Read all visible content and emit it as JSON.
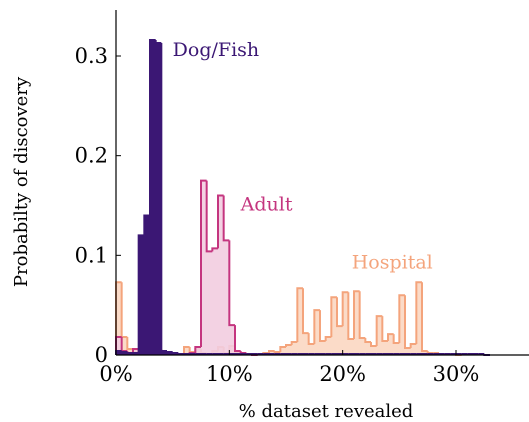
{
  "chart_data": {
    "type": "area",
    "xlabel": "% dataset revealed",
    "ylabel": "Probabilty of discovery",
    "xlim": [
      0,
      36
    ],
    "ylim": [
      0,
      0.35
    ],
    "x_ticks": [
      0,
      10,
      20,
      30
    ],
    "x_tick_labels": [
      "0%",
      "10%",
      "20%",
      "30%"
    ],
    "y_ticks": [
      0,
      0.1,
      0.2,
      0.3
    ],
    "y_tick_labels": [
      "0",
      "0.1",
      "0.2",
      "0.3"
    ],
    "grid": false,
    "bin_width": 0.5,
    "series": [
      {
        "name": "Hospital",
        "label": "Hospital",
        "color": "#f4a47c",
        "fill": "#fbd7c2",
        "fill_opacity": 0.9,
        "label_position": [
          20.8,
          0.087
        ],
        "x": [
          0,
          0.5,
          1,
          1.5,
          2,
          2.5,
          3,
          3.5,
          4,
          4.5,
          5,
          5.5,
          6,
          6.5,
          7,
          7.5,
          8,
          8.5,
          9,
          9.5,
          10,
          10.5,
          11,
          11.5,
          12,
          12.5,
          13,
          13.5,
          14,
          14.5,
          15,
          15.5,
          16,
          16.5,
          17,
          17.5,
          18,
          18.5,
          19,
          19.5,
          20,
          20.5,
          21,
          21.5,
          22,
          22.5,
          23,
          23.5,
          24,
          24.5,
          25,
          25.5,
          26,
          26.5,
          27,
          27.5,
          28,
          28.5,
          29,
          29.5,
          30
        ],
        "values": [
          0.073,
          0.018,
          0.006,
          0.004,
          0.002,
          0.002,
          0.008,
          0.006,
          0.004,
          0.002,
          0.001,
          0.001,
          0.008,
          0.003,
          0.006,
          0.002,
          0.001,
          0.004,
          0.008,
          0.002,
          0.009,
          0.003,
          0.002,
          0.001,
          0.001,
          0.001,
          0.002,
          0.004,
          0.003,
          0.008,
          0.01,
          0.013,
          0.067,
          0.022,
          0.011,
          0.045,
          0.014,
          0.018,
          0.058,
          0.029,
          0.063,
          0.016,
          0.064,
          0.017,
          0.013,
          0.009,
          0.039,
          0.014,
          0.021,
          0.012,
          0.06,
          0.007,
          0.011,
          0.073,
          0.004,
          0.002,
          0.002,
          0.001,
          0.001,
          0.001,
          0.0
        ]
      },
      {
        "name": "Adult",
        "label": "Adult",
        "color": "#c4357f",
        "fill": "#f2cde0",
        "fill_opacity": 0.9,
        "label_position": [
          11.0,
          0.145
        ],
        "x": [
          0,
          0.5,
          1,
          1.5,
          2,
          2.5,
          3,
          3.5,
          4,
          4.5,
          5,
          5.5,
          6,
          6.5,
          7,
          7.5,
          8,
          8.5,
          9,
          9.5,
          10,
          10.5,
          11,
          11.5,
          12
        ],
        "values": [
          0.018,
          0.004,
          0.002,
          0.006,
          0.004,
          0.003,
          0.002,
          0.001,
          0.001,
          0.001,
          0.001,
          0.001,
          0.001,
          0.002,
          0.008,
          0.175,
          0.104,
          0.107,
          0.16,
          0.115,
          0.03,
          0.004,
          0.002,
          0.001,
          0.0
        ]
      },
      {
        "name": "Dog/Fish",
        "label": "Dog/Fish",
        "color": "#3b1774",
        "fill": "#3b1774",
        "fill_opacity": 1,
        "label_position": [
          5.0,
          0.3
        ],
        "x": [
          0,
          0.5,
          1,
          1.5,
          2,
          2.5,
          3,
          3.5,
          4,
          4.5,
          5,
          5.5,
          6,
          6.5,
          7,
          7.5,
          8,
          8.5,
          9,
          9.5,
          10,
          10.5,
          11,
          11.5,
          12,
          12.5,
          13,
          13.5,
          14,
          14.5,
          15,
          15.5,
          16,
          16.5,
          17,
          17.5,
          18,
          18.5,
          19,
          19.5,
          20,
          20.5,
          21,
          21.5,
          22,
          22.5,
          23,
          23.5,
          24,
          24.5,
          25,
          25.5,
          26,
          26.5,
          27,
          27.5,
          28,
          28.5,
          29,
          29.5,
          30,
          30.5,
          31,
          31.5,
          32,
          32.5
        ],
        "values": [
          0.004,
          0.003,
          0.002,
          0.002,
          0.12,
          0.14,
          0.316,
          0.313,
          0.004,
          0.003,
          0.002,
          0.001,
          0.001,
          0.001,
          0.001,
          0.001,
          0.001,
          0.001,
          0.001,
          0.001,
          0.001,
          0.001,
          0.001,
          0.001,
          0.001,
          0.001,
          0.001,
          0.001,
          0.001,
          0.001,
          0.001,
          0.001,
          0.001,
          0.001,
          0.001,
          0.001,
          0.001,
          0.001,
          0.001,
          0.001,
          0.001,
          0.001,
          0.001,
          0.001,
          0.001,
          0.001,
          0.001,
          0.001,
          0.001,
          0.001,
          0.001,
          0.001,
          0.001,
          0.001,
          0.001,
          0.001,
          0.001,
          0.001,
          0.001,
          0.001,
          0.001,
          0.001,
          0.001,
          0.001,
          0.001,
          0.0
        ]
      }
    ]
  }
}
